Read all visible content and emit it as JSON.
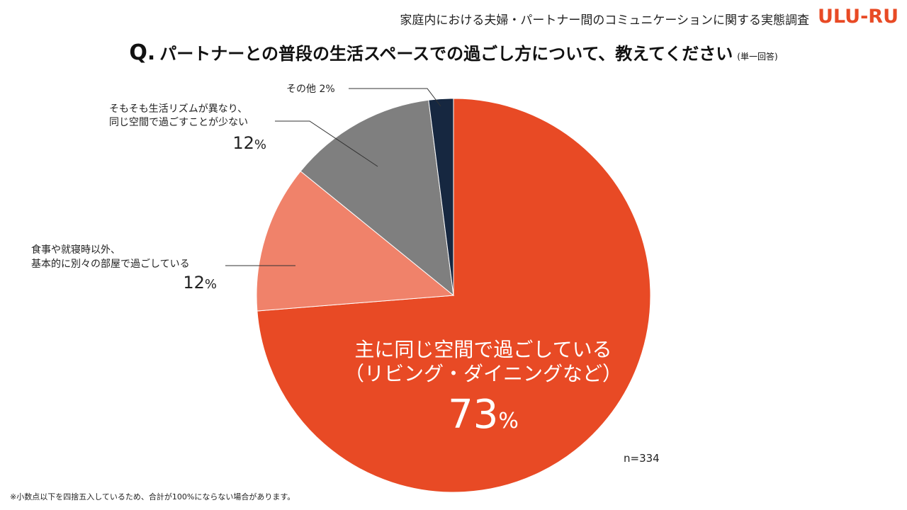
{
  "header": {
    "survey_title": "家庭内における夫婦・パートナー間のコミュニケーションに関する実態調査",
    "logo_text": "ULU-RU",
    "logo_color": "#e84a25"
  },
  "question": {
    "prefix": "Q.",
    "text": "パートナーとの普段の生活スペースでの過ごし方について、教えてください",
    "note": "(単一回答)"
  },
  "chart_data": {
    "type": "pie",
    "title": "パートナーとの普段の生活スペースでの過ごし方について、教えてください",
    "sample_size": "n=334",
    "start": "12 o'clock",
    "direction": "clockwise",
    "slices": [
      {
        "label_lines": [
          "主に同じ空間で過ごしている",
          "（リビング・ダイニングなど）"
        ],
        "value": 73,
        "display": "73",
        "color": "#e84a25"
      },
      {
        "label_lines": [
          "食事や就寝時以外、",
          "基本的に別々の部屋で過ごしている"
        ],
        "value": 12,
        "display": "12",
        "color": "#f0826a"
      },
      {
        "label_lines": [
          "そもそも生活リズムが異なり、",
          "同じ空間で過ごすことが少ない"
        ],
        "value": 12,
        "display": "12",
        "color": "#7f7f7f"
      },
      {
        "label_lines": [
          "その他"
        ],
        "value": 2,
        "display": "2",
        "color": "#162740"
      }
    ],
    "unit": "%"
  },
  "footnote": "※小数点以下を四捨五入しているため、合計が100%にならない場合があります。"
}
